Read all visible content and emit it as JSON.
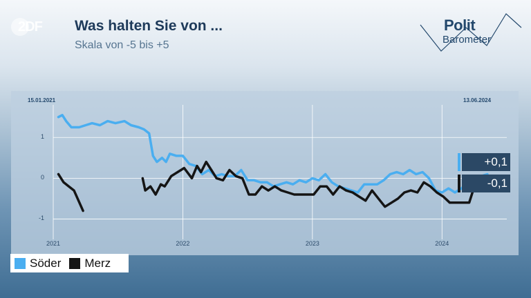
{
  "header": {
    "logo": "2DF",
    "title": "Was halten Sie von ...",
    "subtitle": "Skala von -5 bis +5",
    "brand_line1": "Polit",
    "brand_line2": "Barometer"
  },
  "colors": {
    "soeder": "#4aaef0",
    "merz": "#151515",
    "value_box": "#2b4865"
  },
  "chart_data": {
    "type": "line",
    "date_start": "15.01.2021",
    "date_end": "13.06.2024",
    "xlim": [
      2021.0,
      2024.5
    ],
    "ylim": [
      -1.5,
      1.8
    ],
    "yticks": [
      {
        "value": 1,
        "label": "1"
      },
      {
        "value": 0,
        "label": "0"
      },
      {
        "value": -1,
        "label": "-1"
      }
    ],
    "xticks": [
      {
        "value": 2021,
        "label": "2021"
      },
      {
        "value": 2022,
        "label": "2022"
      },
      {
        "value": 2023,
        "label": "2023"
      },
      {
        "value": 2024,
        "label": "2024"
      }
    ],
    "grid": true,
    "legend_position": "bottom-left",
    "series": [
      {
        "name": "Söder",
        "color": "#4aaef0",
        "last_label": "+0,1",
        "segments": [
          [
            [
              2021.04,
              1.5
            ],
            [
              2021.07,
              1.55
            ],
            [
              2021.1,
              1.4
            ],
            [
              2021.14,
              1.25
            ],
            [
              2021.2,
              1.25
            ],
            [
              2021.25,
              1.3
            ],
            [
              2021.3,
              1.35
            ],
            [
              2021.36,
              1.3
            ],
            [
              2021.42,
              1.4
            ],
            [
              2021.48,
              1.35
            ],
            [
              2021.55,
              1.4
            ],
            [
              2021.6,
              1.3
            ],
            [
              2021.66,
              1.25
            ],
            [
              2021.7,
              1.2
            ],
            [
              2021.74,
              1.1
            ],
            [
              2021.77,
              0.55
            ],
            [
              2021.8,
              0.4
            ],
            [
              2021.84,
              0.5
            ],
            [
              2021.87,
              0.4
            ],
            [
              2021.9,
              0.6
            ],
            [
              2021.95,
              0.55
            ],
            [
              2022.0,
              0.55
            ],
            [
              2022.05,
              0.35
            ],
            [
              2022.1,
              0.3
            ],
            [
              2022.15,
              0.1
            ],
            [
              2022.2,
              0.2
            ],
            [
              2022.25,
              0.05
            ],
            [
              2022.3,
              0.1
            ],
            [
              2022.35,
              0.05
            ],
            [
              2022.4,
              0.05
            ],
            [
              2022.45,
              0.2
            ],
            [
              2022.5,
              -0.05
            ],
            [
              2022.55,
              -0.05
            ],
            [
              2022.6,
              -0.1
            ],
            [
              2022.65,
              -0.1
            ],
            [
              2022.7,
              -0.2
            ],
            [
              2022.75,
              -0.15
            ],
            [
              2022.8,
              -0.1
            ],
            [
              2022.85,
              -0.15
            ],
            [
              2022.9,
              -0.05
            ],
            [
              2022.95,
              -0.1
            ],
            [
              2023.0,
              0.0
            ],
            [
              2023.05,
              -0.05
            ],
            [
              2023.1,
              0.1
            ],
            [
              2023.15,
              -0.1
            ],
            [
              2023.2,
              -0.2
            ],
            [
              2023.25,
              -0.25
            ],
            [
              2023.3,
              -0.3
            ],
            [
              2023.35,
              -0.35
            ],
            [
              2023.4,
              -0.15
            ],
            [
              2023.45,
              -0.15
            ],
            [
              2023.5,
              -0.15
            ],
            [
              2023.55,
              -0.05
            ],
            [
              2023.6,
              0.1
            ],
            [
              2023.65,
              0.15
            ],
            [
              2023.7,
              0.1
            ],
            [
              2023.75,
              0.2
            ],
            [
              2023.8,
              0.1
            ],
            [
              2023.85,
              0.15
            ],
            [
              2023.9,
              0.0
            ],
            [
              2023.95,
              -0.3
            ],
            [
              2024.0,
              -0.35
            ],
            [
              2024.05,
              -0.25
            ],
            [
              2024.1,
              -0.35
            ],
            [
              2024.15,
              -0.25
            ],
            [
              2024.2,
              -0.1
            ],
            [
              2024.25,
              0.0
            ],
            [
              2024.3,
              0.05
            ],
            [
              2024.35,
              0.1
            ]
          ]
        ]
      },
      {
        "name": "Merz",
        "color": "#151515",
        "last_label": "-0,1",
        "segments": [
          [
            [
              2021.04,
              0.1
            ],
            [
              2021.08,
              -0.1
            ],
            [
              2021.12,
              -0.2
            ],
            [
              2021.16,
              -0.3
            ],
            [
              2021.23,
              -0.8
            ]
          ],
          [
            [
              2021.69,
              0.0
            ],
            [
              2021.71,
              -0.3
            ],
            [
              2021.75,
              -0.2
            ],
            [
              2021.79,
              -0.4
            ],
            [
              2021.83,
              -0.15
            ],
            [
              2021.86,
              -0.2
            ],
            [
              2021.91,
              0.05
            ],
            [
              2021.96,
              0.15
            ],
            [
              2022.01,
              0.25
            ],
            [
              2022.07,
              0.0
            ],
            [
              2022.11,
              0.3
            ],
            [
              2022.14,
              0.15
            ],
            [
              2022.18,
              0.4
            ],
            [
              2022.22,
              0.2
            ],
            [
              2022.26,
              0.0
            ],
            [
              2022.31,
              -0.05
            ],
            [
              2022.36,
              0.2
            ],
            [
              2022.41,
              0.05
            ],
            [
              2022.46,
              0.0
            ],
            [
              2022.51,
              -0.4
            ],
            [
              2022.56,
              -0.4
            ],
            [
              2022.61,
              -0.2
            ],
            [
              2022.66,
              -0.3
            ],
            [
              2022.71,
              -0.2
            ],
            [
              2022.76,
              -0.3
            ],
            [
              2022.81,
              -0.35
            ],
            [
              2022.86,
              -0.4
            ],
            [
              2022.91,
              -0.4
            ],
            [
              2022.96,
              -0.4
            ],
            [
              2023.01,
              -0.4
            ],
            [
              2023.06,
              -0.2
            ],
            [
              2023.11,
              -0.2
            ],
            [
              2023.16,
              -0.4
            ],
            [
              2023.21,
              -0.2
            ],
            [
              2023.26,
              -0.3
            ],
            [
              2023.31,
              -0.35
            ],
            [
              2023.36,
              -0.45
            ],
            [
              2023.41,
              -0.55
            ],
            [
              2023.46,
              -0.3
            ],
            [
              2023.51,
              -0.5
            ],
            [
              2023.56,
              -0.7
            ],
            [
              2023.61,
              -0.6
            ],
            [
              2023.66,
              -0.5
            ],
            [
              2023.71,
              -0.35
            ],
            [
              2023.76,
              -0.3
            ],
            [
              2023.81,
              -0.35
            ],
            [
              2023.86,
              -0.1
            ],
            [
              2023.91,
              -0.2
            ],
            [
              2023.96,
              -0.35
            ],
            [
              2024.01,
              -0.45
            ],
            [
              2024.06,
              -0.6
            ],
            [
              2024.11,
              -0.6
            ],
            [
              2024.16,
              -0.6
            ],
            [
              2024.21,
              -0.6
            ],
            [
              2024.26,
              -0.1
            ],
            [
              2024.31,
              -0.1
            ],
            [
              2024.35,
              -0.1
            ]
          ]
        ]
      }
    ]
  },
  "legend": {
    "items": [
      {
        "label": "Söder",
        "color": "#4aaef0"
      },
      {
        "label": "Merz",
        "color": "#151515"
      }
    ]
  }
}
